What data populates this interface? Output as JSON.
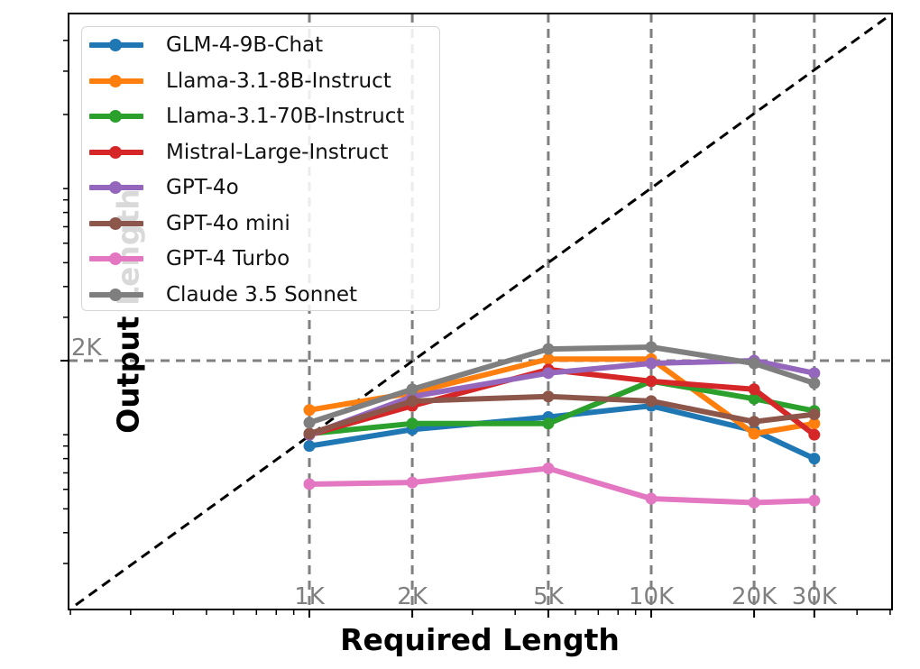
{
  "chart_data": {
    "type": "line",
    "title": "",
    "xlabel": "Required Length",
    "ylabel": "Output Length",
    "x_scale": "log",
    "y_scale": "log",
    "categories": [
      "1K",
      "2K",
      "5K",
      "10K",
      "20K",
      "30K"
    ],
    "x": [
      1000,
      2000,
      5000,
      10000,
      20000,
      30000
    ],
    "xtick_labels": [
      "1K",
      "2K",
      "5K",
      "10K",
      "20K",
      "30K"
    ],
    "ytick_labels": [
      "2K"
    ],
    "reference_lines": {
      "diagonal": "y = x (black dashed)",
      "horizontal": "y = 2K (gray dashed)",
      "vertical": [
        "1K",
        "2K",
        "5K",
        "10K",
        "20K",
        "30K"
      ]
    },
    "grid": false,
    "legend_position": "upper left",
    "series": [
      {
        "name": "GLM-4-9B-Chat",
        "color": "#1f77b4",
        "values": [
          900,
          1050,
          1180,
          1310,
          1040,
          800
        ]
      },
      {
        "name": "Llama-3.1-8B-Instruct",
        "color": "#ff7f0e",
        "values": [
          1260,
          1480,
          2030,
          2030,
          1010,
          1110
        ]
      },
      {
        "name": "Llama-3.1-70B-Instruct",
        "color": "#2ca02c",
        "values": [
          1010,
          1110,
          1110,
          1650,
          1400,
          1250
        ]
      },
      {
        "name": "Mistral-Large-Instruct",
        "color": "#d62728",
        "values": [
          1000,
          1310,
          1840,
          1650,
          1530,
          1000
        ]
      },
      {
        "name": "GPT-4o",
        "color": "#9467bd",
        "values": [
          1000,
          1430,
          1780,
          1950,
          2000,
          1780
        ]
      },
      {
        "name": "GPT-4o mini",
        "color": "#8c564b",
        "values": [
          1010,
          1370,
          1430,
          1370,
          1130,
          1210
        ]
      },
      {
        "name": "GPT-4 Turbo",
        "color": "#e377c2",
        "values": [
          630,
          640,
          730,
          550,
          530,
          540
        ]
      },
      {
        "name": "Claude 3.5 Sonnet",
        "color": "#7f7f7f",
        "values": [
          1120,
          1530,
          2230,
          2270,
          1950,
          1620
        ]
      }
    ],
    "xlim": [
      200,
      50000
    ],
    "ylim": [
      200,
      50000
    ]
  },
  "legend": {
    "items": [
      {
        "label": "GLM-4-9B-Chat",
        "color": "#1f77b4"
      },
      {
        "label": "Llama-3.1-8B-Instruct",
        "color": "#ff7f0e"
      },
      {
        "label": "Llama-3.1-70B-Instruct",
        "color": "#2ca02c"
      },
      {
        "label": "Mistral-Large-Instruct",
        "color": "#d62728"
      },
      {
        "label": "GPT-4o",
        "color": "#9467bd"
      },
      {
        "label": "GPT-4o mini",
        "color": "#8c564b"
      },
      {
        "label": "GPT-4 Turbo",
        "color": "#e377c2"
      },
      {
        "label": "Claude 3.5 Sonnet",
        "color": "#7f7f7f"
      }
    ]
  },
  "axes": {
    "xlabel": "Required Length",
    "ylabel": "Output Length"
  }
}
